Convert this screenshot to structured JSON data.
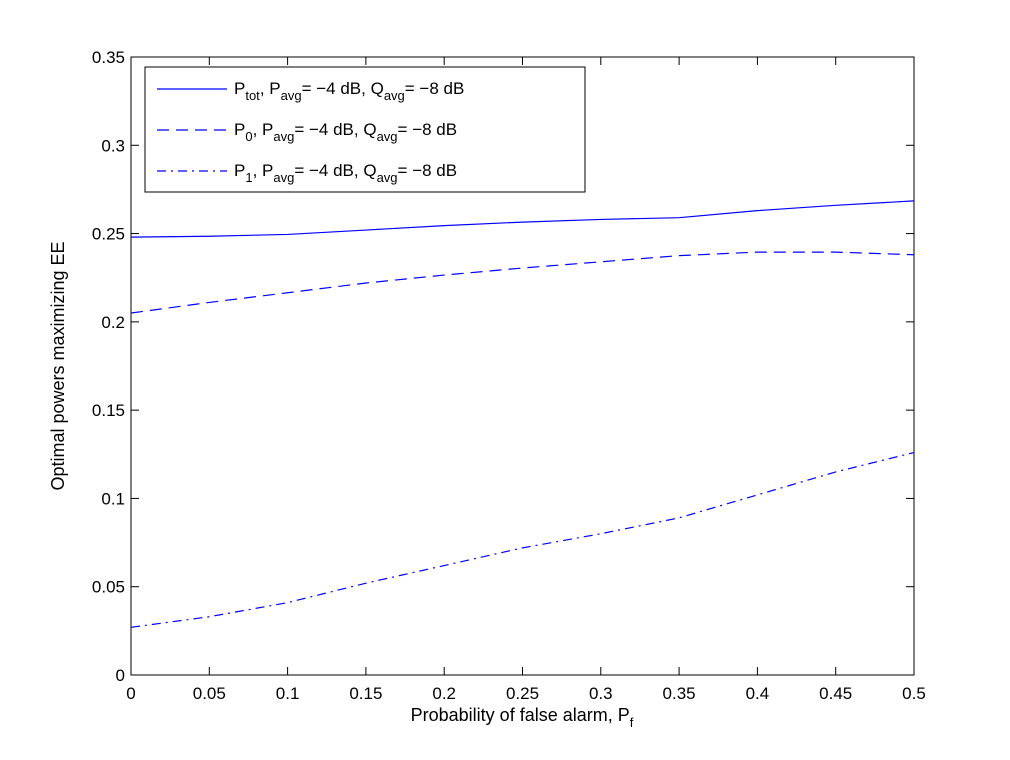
{
  "chart_data": {
    "type": "line",
    "xlabel": "Probability of false alarm, P",
    "xlabel_sub": "f",
    "ylabel": "Optimal powers maximizing EE",
    "xlim": [
      0,
      0.5
    ],
    "ylim": [
      0,
      0.35
    ],
    "xticks": [
      0,
      0.05,
      0.1,
      0.15,
      0.2,
      0.25,
      0.3,
      0.35,
      0.4,
      0.45,
      0.5
    ],
    "yticks": [
      0,
      0.05,
      0.1,
      0.15,
      0.2,
      0.25,
      0.3,
      0.35
    ],
    "xtick_labels": [
      "0",
      "0.05",
      "0.1",
      "0.15",
      "0.2",
      "0.25",
      "0.3",
      "0.35",
      "0.4",
      "0.45",
      "0.5"
    ],
    "ytick_labels": [
      "0",
      "0.05",
      "0.1",
      "0.15",
      "0.2",
      "0.25",
      "0.3",
      "0.35"
    ],
    "grid": false,
    "legend_position": "top-left",
    "series_color": "#0000ff",
    "x": [
      0,
      0.05,
      0.1,
      0.15,
      0.2,
      0.25,
      0.3,
      0.35,
      0.4,
      0.45,
      0.5
    ],
    "series": [
      {
        "name": "P_tot, P_avg = −4 dB, Q_avg = −8 dB",
        "legend": {
          "p_base": "P",
          "p_sub": "tot",
          "mid": ", P",
          "mid_sub": "avg",
          "mid2": "= −4 dB, Q",
          "q_sub": "avg",
          "tail": "= −8 dB"
        },
        "line_style": "solid",
        "values": [
          0.248,
          0.2485,
          0.2495,
          0.252,
          0.2545,
          0.2565,
          0.258,
          0.259,
          0.263,
          0.266,
          0.2685
        ]
      },
      {
        "name": "P_0, P_avg = −4 dB, Q_avg = −8 dB",
        "legend": {
          "p_base": "P",
          "p_sub": "0",
          "mid": ", P",
          "mid_sub": "avg",
          "mid2": "= −4 dB, Q",
          "q_sub": "avg",
          "tail": "= −8 dB"
        },
        "line_style": "dashed",
        "values": [
          0.205,
          0.211,
          0.2165,
          0.222,
          0.2265,
          0.2305,
          0.234,
          0.2375,
          0.2395,
          0.2395,
          0.238
        ]
      },
      {
        "name": "P_1, P_avg = −4 dB, Q_avg = −8 dB",
        "legend": {
          "p_base": "P",
          "p_sub": "1",
          "mid": ", P",
          "mid_sub": "avg",
          "mid2": "= −4 dB, Q",
          "q_sub": "avg",
          "tail": "= −8 dB"
        },
        "line_style": "dashdot",
        "values": [
          0.027,
          0.033,
          0.041,
          0.052,
          0.062,
          0.072,
          0.08,
          0.089,
          0.102,
          0.115,
          0.126
        ]
      }
    ]
  }
}
